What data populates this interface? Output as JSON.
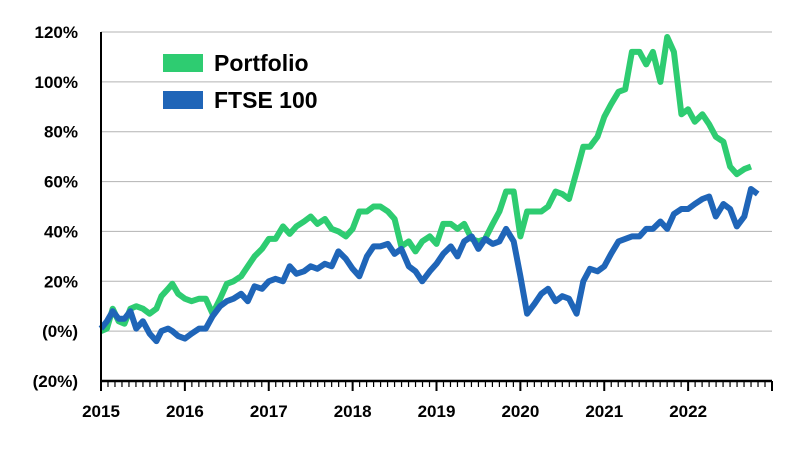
{
  "chart_data": {
    "type": "line",
    "title": "",
    "xlabel": "",
    "ylabel": "",
    "xlim": [
      2015,
      2023
    ],
    "ylim": [
      -20,
      120
    ],
    "x_ticks": [
      {
        "value": 2015,
        "label": "2015"
      },
      {
        "value": 2016,
        "label": "2016"
      },
      {
        "value": 2017,
        "label": "2017"
      },
      {
        "value": 2018,
        "label": "2018"
      },
      {
        "value": 2019,
        "label": "2019"
      },
      {
        "value": 2020,
        "label": "2020"
      },
      {
        "value": 2021,
        "label": "2021"
      },
      {
        "value": 2022,
        "label": "2022"
      }
    ],
    "y_ticks": [
      {
        "value": 120,
        "label": "120%"
      },
      {
        "value": 100,
        "label": "100%"
      },
      {
        "value": 80,
        "label": "80%"
      },
      {
        "value": 60,
        "label": "60%"
      },
      {
        "value": 40,
        "label": "40%"
      },
      {
        "value": 20,
        "label": "20%"
      },
      {
        "value": 0,
        "label": "(0%)"
      },
      {
        "value": -20,
        "label": "(20%)"
      }
    ],
    "grid": {
      "horizontal": true,
      "vertical": false
    },
    "legend_position": "top-left",
    "series": [
      {
        "name": "Portfolio",
        "color": "#2ECC71",
        "points": [
          [
            2015.0,
            0
          ],
          [
            2015.07,
            1
          ],
          [
            2015.14,
            9
          ],
          [
            2015.21,
            4
          ],
          [
            2015.28,
            3
          ],
          [
            2015.35,
            9
          ],
          [
            2015.42,
            10
          ],
          [
            2015.5,
            9
          ],
          [
            2015.58,
            7
          ],
          [
            2015.66,
            9
          ],
          [
            2015.72,
            14
          ],
          [
            2015.8,
            17
          ],
          [
            2015.85,
            19
          ],
          [
            2015.92,
            15
          ],
          [
            2016.0,
            13
          ],
          [
            2016.08,
            12
          ],
          [
            2016.17,
            13
          ],
          [
            2016.25,
            13
          ],
          [
            2016.33,
            7
          ],
          [
            2016.42,
            13
          ],
          [
            2016.5,
            19
          ],
          [
            2016.58,
            20
          ],
          [
            2016.67,
            22
          ],
          [
            2016.75,
            26
          ],
          [
            2016.83,
            30
          ],
          [
            2016.92,
            33
          ],
          [
            2017.0,
            37
          ],
          [
            2017.08,
            37
          ],
          [
            2017.17,
            42
          ],
          [
            2017.25,
            39
          ],
          [
            2017.33,
            42
          ],
          [
            2017.42,
            44
          ],
          [
            2017.5,
            46
          ],
          [
            2017.58,
            43
          ],
          [
            2017.67,
            45
          ],
          [
            2017.75,
            41
          ],
          [
            2017.83,
            40
          ],
          [
            2017.92,
            38
          ],
          [
            2018.0,
            41
          ],
          [
            2018.08,
            48
          ],
          [
            2018.17,
            48
          ],
          [
            2018.25,
            50
          ],
          [
            2018.33,
            50
          ],
          [
            2018.42,
            48
          ],
          [
            2018.5,
            45
          ],
          [
            2018.58,
            34
          ],
          [
            2018.67,
            36
          ],
          [
            2018.75,
            32
          ],
          [
            2018.83,
            36
          ],
          [
            2018.92,
            38
          ],
          [
            2019.0,
            35
          ],
          [
            2019.08,
            43
          ],
          [
            2019.17,
            43
          ],
          [
            2019.25,
            41
          ],
          [
            2019.33,
            43
          ],
          [
            2019.42,
            37
          ],
          [
            2019.5,
            36
          ],
          [
            2019.58,
            37
          ],
          [
            2019.67,
            43
          ],
          [
            2019.75,
            48
          ],
          [
            2019.83,
            56
          ],
          [
            2019.92,
            56
          ],
          [
            2020.0,
            38
          ],
          [
            2020.08,
            48
          ],
          [
            2020.17,
            48
          ],
          [
            2020.25,
            48
          ],
          [
            2020.33,
            50
          ],
          [
            2020.42,
            56
          ],
          [
            2020.5,
            55
          ],
          [
            2020.58,
            53
          ],
          [
            2020.67,
            64
          ],
          [
            2020.75,
            74
          ],
          [
            2020.83,
            74
          ],
          [
            2020.92,
            78
          ],
          [
            2021.0,
            86
          ],
          [
            2021.08,
            91
          ],
          [
            2021.17,
            96
          ],
          [
            2021.25,
            97
          ],
          [
            2021.33,
            112
          ],
          [
            2021.42,
            112
          ],
          [
            2021.5,
            107
          ],
          [
            2021.58,
            112
          ],
          [
            2021.67,
            100
          ],
          [
            2021.75,
            118
          ],
          [
            2021.83,
            112
          ],
          [
            2021.92,
            87
          ],
          [
            2022.0,
            89
          ],
          [
            2022.08,
            84
          ],
          [
            2022.17,
            87
          ],
          [
            2022.25,
            83
          ],
          [
            2022.33,
            78
          ],
          [
            2022.42,
            76
          ],
          [
            2022.5,
            66
          ],
          [
            2022.58,
            63
          ],
          [
            2022.67,
            65
          ],
          [
            2022.75,
            66
          ]
        ]
      },
      {
        "name": "FTSE 100",
        "color": "#1F65B8",
        "points": [
          [
            2015.0,
            1
          ],
          [
            2015.07,
            4
          ],
          [
            2015.14,
            8
          ],
          [
            2015.21,
            5
          ],
          [
            2015.28,
            5
          ],
          [
            2015.35,
            8
          ],
          [
            2015.42,
            1
          ],
          [
            2015.5,
            4
          ],
          [
            2015.58,
            -1
          ],
          [
            2015.66,
            -4
          ],
          [
            2015.72,
            0
          ],
          [
            2015.8,
            1
          ],
          [
            2015.85,
            0
          ],
          [
            2015.92,
            -2
          ],
          [
            2016.0,
            -3
          ],
          [
            2016.08,
            -1
          ],
          [
            2016.17,
            1
          ],
          [
            2016.25,
            1
          ],
          [
            2016.33,
            6
          ],
          [
            2016.42,
            10
          ],
          [
            2016.5,
            12
          ],
          [
            2016.58,
            13
          ],
          [
            2016.67,
            15
          ],
          [
            2016.75,
            12
          ],
          [
            2016.83,
            18
          ],
          [
            2016.92,
            17
          ],
          [
            2017.0,
            20
          ],
          [
            2017.08,
            21
          ],
          [
            2017.17,
            20
          ],
          [
            2017.25,
            26
          ],
          [
            2017.33,
            23
          ],
          [
            2017.42,
            24
          ],
          [
            2017.5,
            26
          ],
          [
            2017.58,
            25
          ],
          [
            2017.67,
            27
          ],
          [
            2017.75,
            26
          ],
          [
            2017.83,
            32
          ],
          [
            2017.92,
            29
          ],
          [
            2018.0,
            25
          ],
          [
            2018.08,
            22
          ],
          [
            2018.17,
            30
          ],
          [
            2018.25,
            34
          ],
          [
            2018.33,
            34
          ],
          [
            2018.42,
            35
          ],
          [
            2018.5,
            31
          ],
          [
            2018.58,
            33
          ],
          [
            2018.67,
            26
          ],
          [
            2018.75,
            24
          ],
          [
            2018.83,
            20
          ],
          [
            2018.92,
            24
          ],
          [
            2019.0,
            27
          ],
          [
            2019.08,
            31
          ],
          [
            2019.17,
            34
          ],
          [
            2019.25,
            30
          ],
          [
            2019.33,
            36
          ],
          [
            2019.42,
            38
          ],
          [
            2019.5,
            33
          ],
          [
            2019.58,
            37
          ],
          [
            2019.67,
            35
          ],
          [
            2019.75,
            36
          ],
          [
            2019.83,
            41
          ],
          [
            2019.92,
            36
          ],
          [
            2020.0,
            22
          ],
          [
            2020.08,
            7
          ],
          [
            2020.17,
            11
          ],
          [
            2020.25,
            15
          ],
          [
            2020.33,
            17
          ],
          [
            2020.42,
            12
          ],
          [
            2020.5,
            14
          ],
          [
            2020.58,
            13
          ],
          [
            2020.67,
            7
          ],
          [
            2020.75,
            20
          ],
          [
            2020.83,
            25
          ],
          [
            2020.92,
            24
          ],
          [
            2021.0,
            26
          ],
          [
            2021.08,
            31
          ],
          [
            2021.17,
            36
          ],
          [
            2021.25,
            37
          ],
          [
            2021.33,
            38
          ],
          [
            2021.42,
            38
          ],
          [
            2021.5,
            41
          ],
          [
            2021.58,
            41
          ],
          [
            2021.67,
            44
          ],
          [
            2021.75,
            41
          ],
          [
            2021.83,
            47
          ],
          [
            2021.92,
            49
          ],
          [
            2022.0,
            49
          ],
          [
            2022.08,
            51
          ],
          [
            2022.17,
            53
          ],
          [
            2022.25,
            54
          ],
          [
            2022.33,
            46
          ],
          [
            2022.42,
            51
          ],
          [
            2022.5,
            49
          ],
          [
            2022.58,
            42
          ],
          [
            2022.67,
            46
          ],
          [
            2022.75,
            57
          ],
          [
            2022.83,
            55
          ]
        ]
      }
    ]
  }
}
